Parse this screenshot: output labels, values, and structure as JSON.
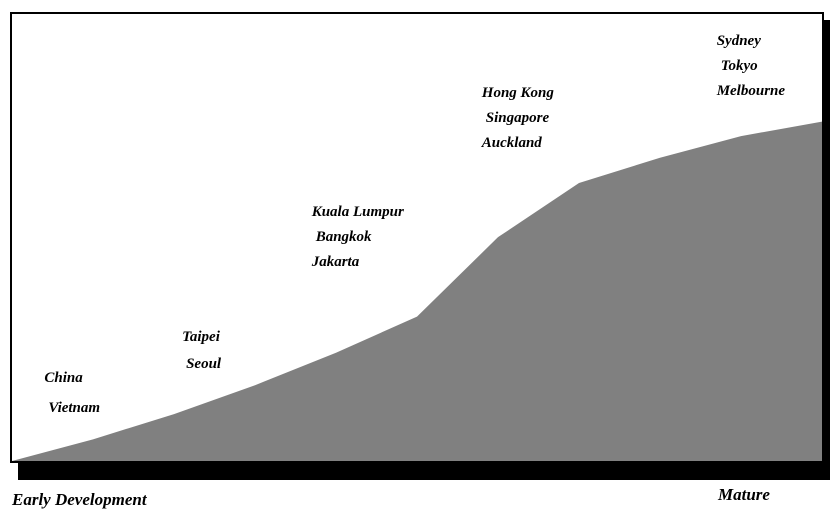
{
  "chart_data": {
    "type": "area",
    "x_start_label": "Early Development",
    "x_end_label": "Mature",
    "curve": {
      "x": [
        0,
        10,
        20,
        30,
        40,
        50,
        60,
        70,
        80,
        90,
        100
      ],
      "y": [
        0,
        6,
        13,
        21,
        30,
        40,
        62,
        77,
        84,
        90,
        94
      ]
    },
    "groups": [
      {
        "cities": [
          "China",
          "Vietnam"
        ],
        "x": 4
      },
      {
        "cities": [
          "Taipei",
          "Seoul"
        ],
        "x": 21
      },
      {
        "cities": [
          "Kuala Lumpur",
          "Bangkok",
          "Jakarta"
        ],
        "x": 37
      },
      {
        "cities": [
          "Hong Kong",
          "Singapore",
          "Auckland"
        ],
        "x": 58
      },
      {
        "cities": [
          "Sydney",
          "Tokyo",
          "Melbourne"
        ],
        "x": 87
      }
    ],
    "colors": {
      "area": "#808080",
      "shadow": "#000000",
      "frame": "#000000"
    }
  }
}
